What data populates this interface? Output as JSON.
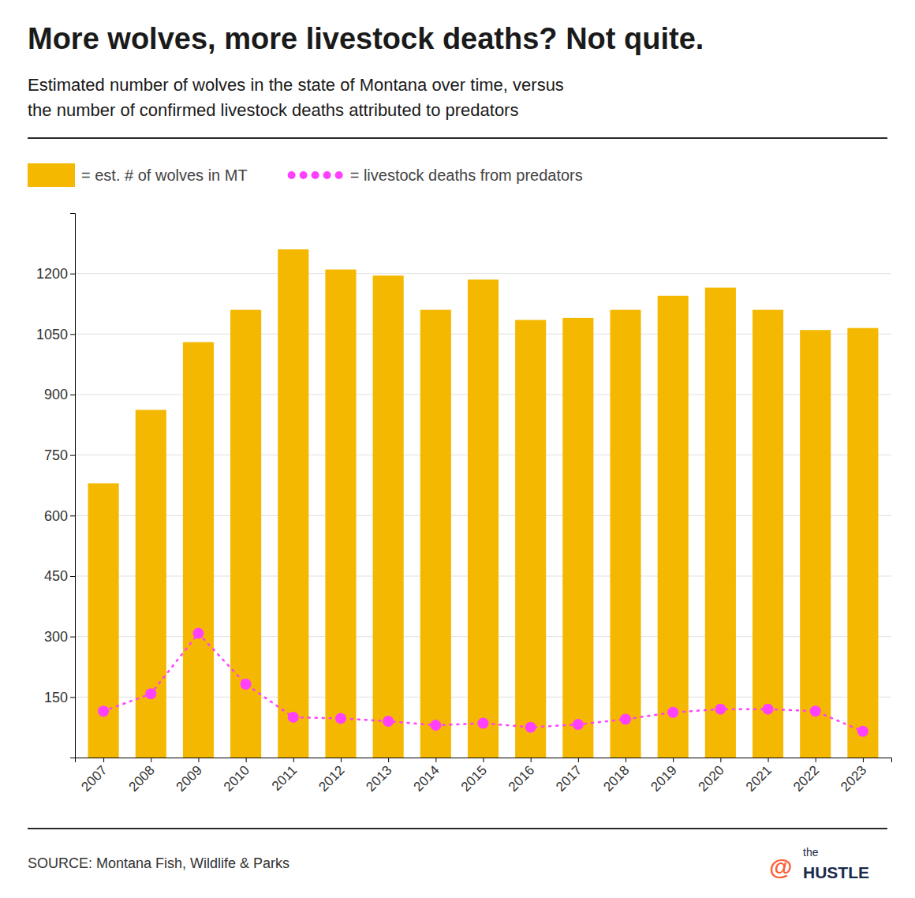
{
  "chart_data": {
    "type": "bar",
    "title": "More wolves, more livestock deaths? Not quite.",
    "subtitle": [
      "Estimated number of wolves in the state of Montana over time, versus",
      "the number of confirmed livestock deaths attributed to predators"
    ],
    "annotations": [
      "SOURCE: Montana Fish, Wildlife & Parks",
      "@",
      "the",
      "HUSTLE"
    ],
    "x": [
      2007,
      2008,
      2009,
      2010,
      2011,
      2012,
      2013,
      2014,
      2015,
      2016,
      2017,
      2018,
      2019,
      2020,
      2021,
      2022,
      2023
    ],
    "xlim": [
      2006.4,
      2023.6
    ],
    "xticks": [
      2007,
      2008,
      2009,
      2010,
      2011,
      2012,
      2013,
      2014,
      2015,
      2016,
      2017,
      2018,
      2019,
      2020,
      2021,
      2022,
      2023
    ],
    "ylim": [
      0,
      1350
    ],
    "yticks": [
      150,
      300,
      450,
      600,
      750,
      900,
      1050,
      1200
    ],
    "grid": true,
    "legend": "top",
    "series": [
      {
        "name": "= est. # of wolves in MT",
        "type": "bar",
        "color": "#F5B800",
        "values": [
          680,
          862,
          1030,
          1110,
          1260,
          1210,
          1195,
          1110,
          1185,
          1085,
          1090,
          1110,
          1145,
          1165,
          1110,
          1060,
          1065
        ]
      },
      {
        "name": "= livestock deaths from predators",
        "type": "line",
        "color": "#FF40FF",
        "marker": "circle",
        "line_style": "dotted",
        "values": [
          115,
          158,
          308,
          182,
          100,
          97,
          90,
          80,
          85,
          75,
          82,
          95,
          112,
          120,
          120,
          115,
          65
        ]
      }
    ]
  }
}
